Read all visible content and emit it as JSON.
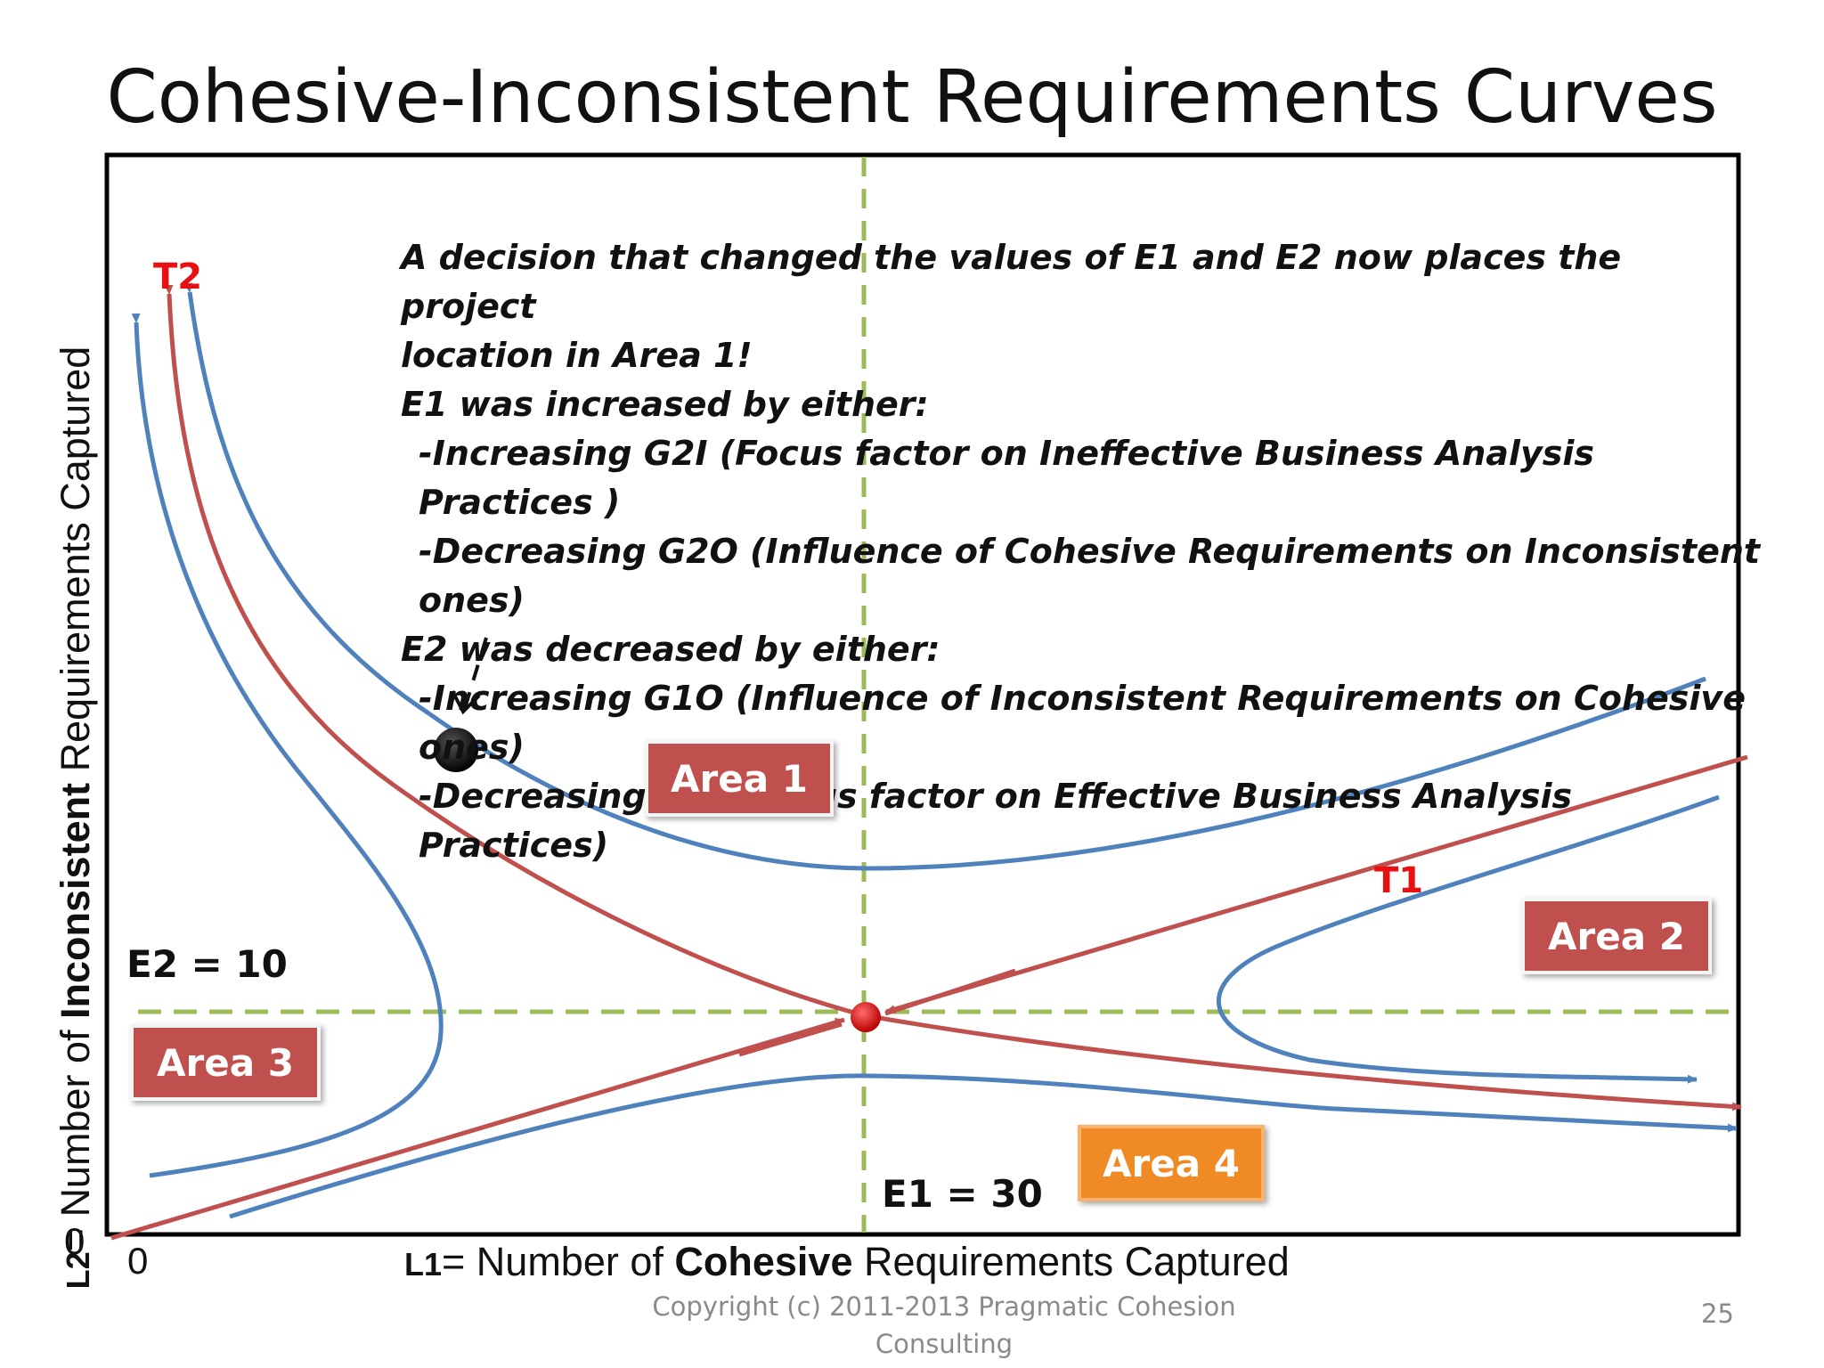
{
  "title": "Cohesive-Inconsistent Requirements Curves",
  "y_axis": {
    "symbol": "L2",
    "prefix": "= Number of ",
    "strong": "Inconsistent",
    "suffix": " Requirements Captured"
  },
  "x_axis": {
    "symbol": "L1",
    "prefix": "= Number of ",
    "strong": "Cohesive",
    "suffix": " Requirements Captured"
  },
  "origin": {
    "x": "0",
    "y": "0"
  },
  "note_lines": [
    "A decision that changed the values of E1 and E2 now places the project",
    "location in Area 1!",
    "E1 was increased by either:",
    "-Increasing G2I (Focus factor on Ineffective Business Analysis Practices )",
    "-Decreasing G2O (Influence of  Cohesive Requirements on Inconsistent ones)",
    "E2 was decreased by either:",
    "-Increasing G1O (Influence of Inconsistent Requirements on Cohesive ones)",
    "-Decreasing G1I (Focus factor on Effective  Business Analysis Practices)"
  ],
  "areas": {
    "area1": "Area 1",
    "area2": "Area 2",
    "area3": "Area 3",
    "area4": "Area 4"
  },
  "labels": {
    "e1": "E1 = 30",
    "e2": "E2 = 10",
    "t1": "T1",
    "t2": "T2"
  },
  "footer": {
    "copyright_line1": "Copyright (c) 2011-2013 Pragmatic Cohesion",
    "copyright_line2": "Consulting",
    "page_number": "25"
  },
  "colors": {
    "blue_curve": "#4f81bd",
    "red_curve": "#c0504d",
    "dashed_guides": "#9bbb59",
    "area_red": "#c0504d",
    "area_orange": "#f08a24",
    "label_red": "#e81010"
  }
}
